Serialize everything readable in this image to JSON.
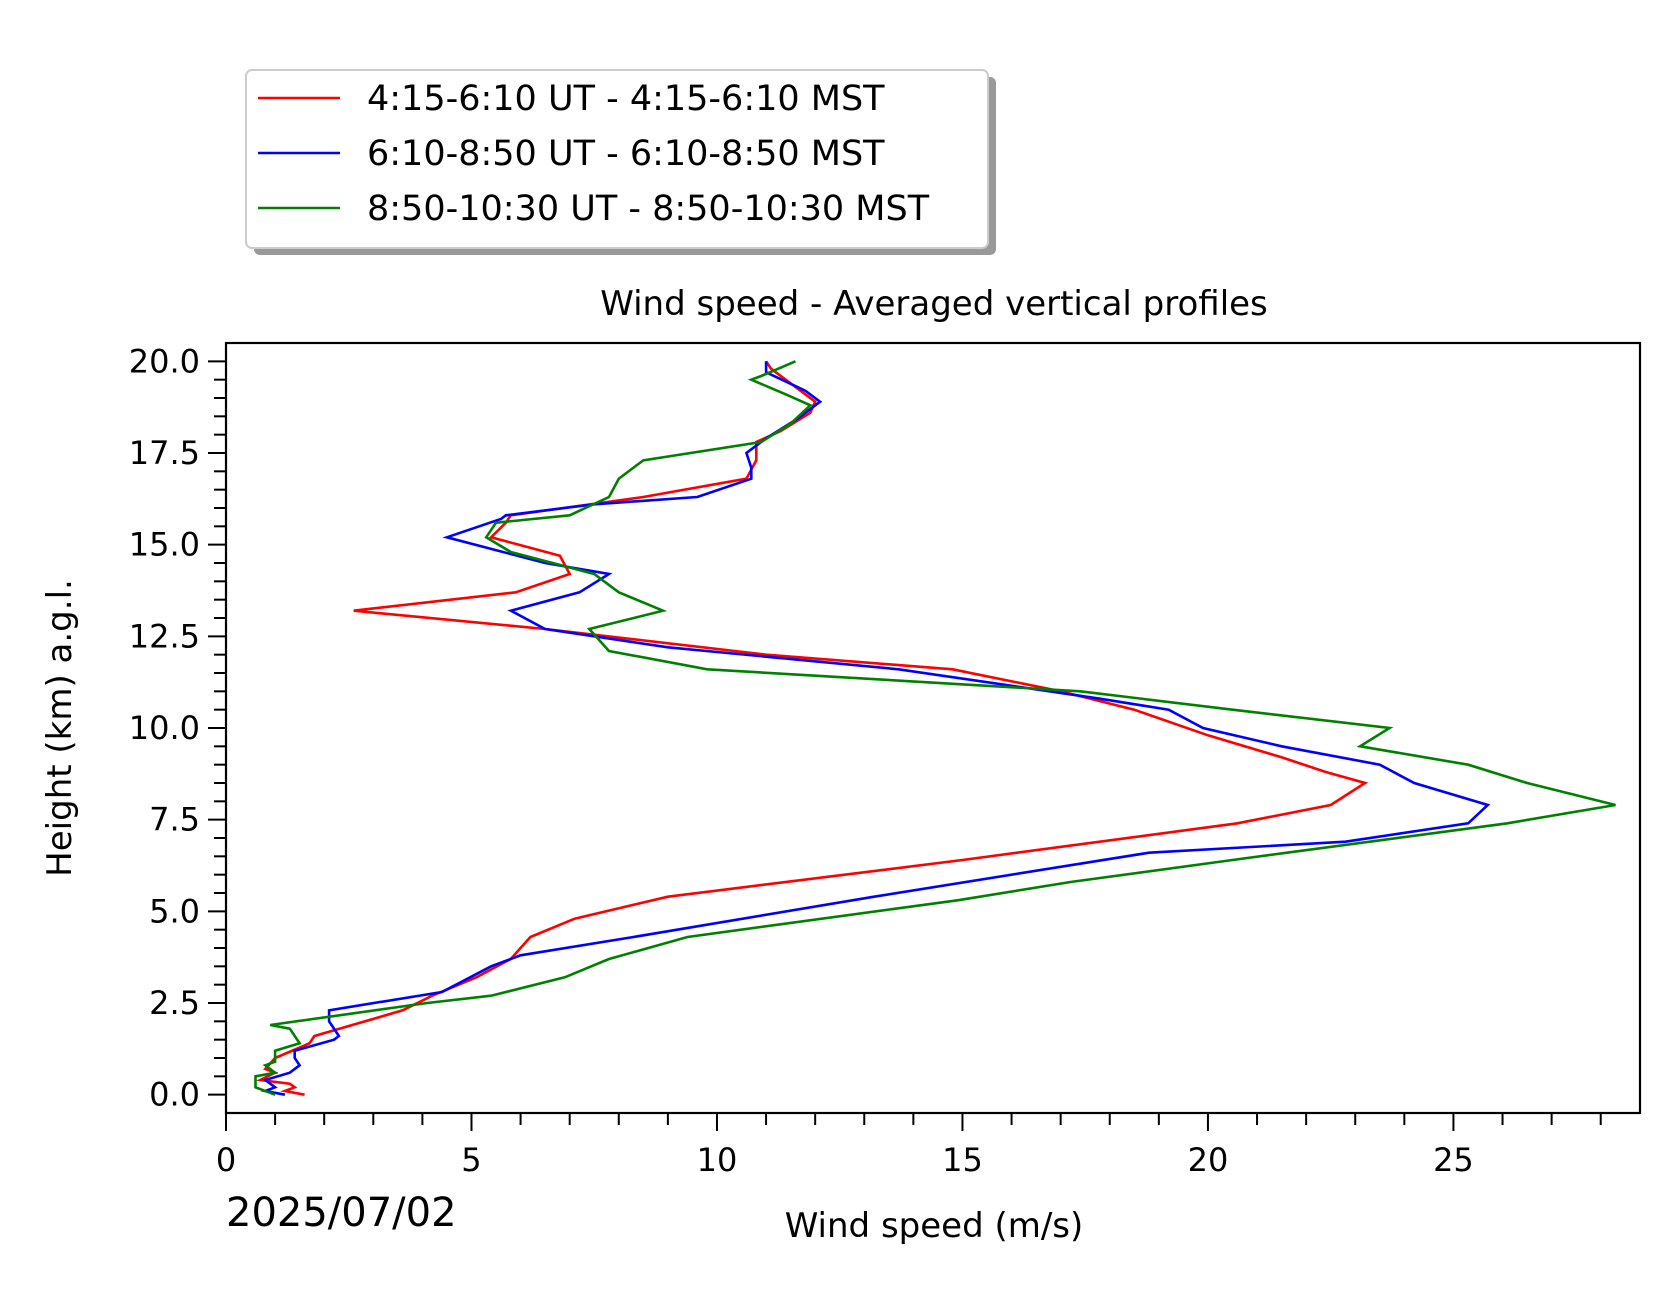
{
  "chart_data": {
    "type": "line",
    "title": "Wind speed - Averaged vertical profiles",
    "xlabel": "Wind speed (m/s)",
    "ylabel": "Height (km) a.g.l.",
    "date_label": "2025/07/02",
    "xlim": [
      0,
      28.8
    ],
    "ylim": [
      -0.5,
      20.5
    ],
    "x_ticks": [
      "0",
      "5",
      "10",
      "15",
      "20",
      "25"
    ],
    "y_ticks": [
      "0.0",
      "2.5",
      "5.0",
      "7.5",
      "10.0",
      "12.5",
      "15.0",
      "17.5",
      "20.0"
    ],
    "grid": false,
    "legend_position": "top-left, above the axes",
    "series": [
      {
        "name": "4:15-6:10 UT - 4:15-6:10 MST",
        "color": "#ff0000",
        "points": [
          [
            11.0,
            20.0
          ],
          [
            11.1,
            19.8
          ],
          [
            12.0,
            18.9
          ],
          [
            11.9,
            18.6
          ],
          [
            11.3,
            18.1
          ],
          [
            10.8,
            17.8
          ],
          [
            10.8,
            17.3
          ],
          [
            10.6,
            16.8
          ],
          [
            8.5,
            16.3
          ],
          [
            5.8,
            15.8
          ],
          [
            5.7,
            15.6
          ],
          [
            5.4,
            15.2
          ],
          [
            6.8,
            14.7
          ],
          [
            7.0,
            14.2
          ],
          [
            5.9,
            13.7
          ],
          [
            2.6,
            13.2
          ],
          [
            6.5,
            12.7
          ],
          [
            11.0,
            12.0
          ],
          [
            14.8,
            11.6
          ],
          [
            17.0,
            11.0
          ],
          [
            18.5,
            10.5
          ],
          [
            20.0,
            9.8
          ],
          [
            21.5,
            9.2
          ],
          [
            22.4,
            8.8
          ],
          [
            23.2,
            8.5
          ],
          [
            22.5,
            7.9
          ],
          [
            20.6,
            7.4
          ],
          [
            15.0,
            6.4
          ],
          [
            9.0,
            5.4
          ],
          [
            7.1,
            4.8
          ],
          [
            6.2,
            4.3
          ],
          [
            5.8,
            3.7
          ],
          [
            5.1,
            3.2
          ],
          [
            4.2,
            2.7
          ],
          [
            3.6,
            2.3
          ],
          [
            1.8,
            1.6
          ],
          [
            1.7,
            1.4
          ],
          [
            1.0,
            1.0
          ],
          [
            0.8,
            0.7
          ],
          [
            1.0,
            0.6
          ],
          [
            0.7,
            0.4
          ],
          [
            1.3,
            0.3
          ],
          [
            1.4,
            0.2
          ],
          [
            1.2,
            0.1
          ],
          [
            1.6,
            0.0
          ]
        ]
      },
      {
        "name": "6:10-8:50 UT - 6:10-8:50 MST",
        "color": "#0000ff",
        "points": [
          [
            11.0,
            20.0
          ],
          [
            11.0,
            19.7
          ],
          [
            11.8,
            19.2
          ],
          [
            12.1,
            18.9
          ],
          [
            11.6,
            18.4
          ],
          [
            11.0,
            17.9
          ],
          [
            10.6,
            17.5
          ],
          [
            10.7,
            17.1
          ],
          [
            10.7,
            16.8
          ],
          [
            9.6,
            16.3
          ],
          [
            7.5,
            16.1
          ],
          [
            5.7,
            15.8
          ],
          [
            5.6,
            15.7
          ],
          [
            4.5,
            15.2
          ],
          [
            6.5,
            14.5
          ],
          [
            7.8,
            14.2
          ],
          [
            7.2,
            13.7
          ],
          [
            5.8,
            13.2
          ],
          [
            6.5,
            12.7
          ],
          [
            9.0,
            12.2
          ],
          [
            13.7,
            11.6
          ],
          [
            17.8,
            10.8
          ],
          [
            19.2,
            10.5
          ],
          [
            19.9,
            10.0
          ],
          [
            21.5,
            9.5
          ],
          [
            23.5,
            9.0
          ],
          [
            24.2,
            8.5
          ],
          [
            25.7,
            7.9
          ],
          [
            25.3,
            7.4
          ],
          [
            22.8,
            6.9
          ],
          [
            18.8,
            6.6
          ],
          [
            13.2,
            5.4
          ],
          [
            8.3,
            4.3
          ],
          [
            6.0,
            3.8
          ],
          [
            5.4,
            3.5
          ],
          [
            4.4,
            2.8
          ],
          [
            2.1,
            2.3
          ],
          [
            2.1,
            2.0
          ],
          [
            2.3,
            1.6
          ],
          [
            2.2,
            1.5
          ],
          [
            1.4,
            1.2
          ],
          [
            1.4,
            1.0
          ],
          [
            1.5,
            0.8
          ],
          [
            1.3,
            0.6
          ],
          [
            0.8,
            0.4
          ],
          [
            1.0,
            0.2
          ],
          [
            0.8,
            0.1
          ],
          [
            1.2,
            0.0
          ]
        ]
      },
      {
        "name": "8:50-10:30 UT - 8:50-10:30 MST",
        "color": "#008000",
        "points": [
          [
            11.6,
            20.0
          ],
          [
            10.9,
            19.6
          ],
          [
            10.7,
            19.5
          ],
          [
            11.4,
            19.1
          ],
          [
            11.9,
            18.8
          ],
          [
            11.5,
            18.3
          ],
          [
            10.9,
            17.8
          ],
          [
            8.5,
            17.3
          ],
          [
            8.0,
            16.8
          ],
          [
            7.8,
            16.3
          ],
          [
            7.0,
            15.8
          ],
          [
            5.5,
            15.6
          ],
          [
            5.3,
            15.2
          ],
          [
            5.8,
            14.8
          ],
          [
            7.5,
            14.2
          ],
          [
            8.0,
            13.7
          ],
          [
            8.9,
            13.2
          ],
          [
            7.4,
            12.7
          ],
          [
            7.8,
            12.1
          ],
          [
            9.8,
            11.6
          ],
          [
            17.4,
            11.0
          ],
          [
            20.5,
            10.5
          ],
          [
            23.7,
            10.0
          ],
          [
            23.1,
            9.5
          ],
          [
            25.3,
            9.0
          ],
          [
            26.5,
            8.5
          ],
          [
            28.3,
            7.9
          ],
          [
            26.1,
            7.4
          ],
          [
            20.5,
            6.4
          ],
          [
            17.2,
            5.8
          ],
          [
            14.9,
            5.3
          ],
          [
            9.4,
            4.3
          ],
          [
            7.8,
            3.7
          ],
          [
            6.9,
            3.2
          ],
          [
            5.4,
            2.7
          ],
          [
            4.1,
            2.5
          ],
          [
            0.9,
            1.9
          ],
          [
            1.3,
            1.8
          ],
          [
            1.5,
            1.4
          ],
          [
            1.0,
            1.2
          ],
          [
            1.0,
            0.9
          ],
          [
            0.8,
            0.8
          ],
          [
            1.0,
            0.6
          ],
          [
            0.6,
            0.5
          ],
          [
            0.6,
            0.2
          ],
          [
            1.0,
            0.0
          ]
        ]
      }
    ]
  }
}
